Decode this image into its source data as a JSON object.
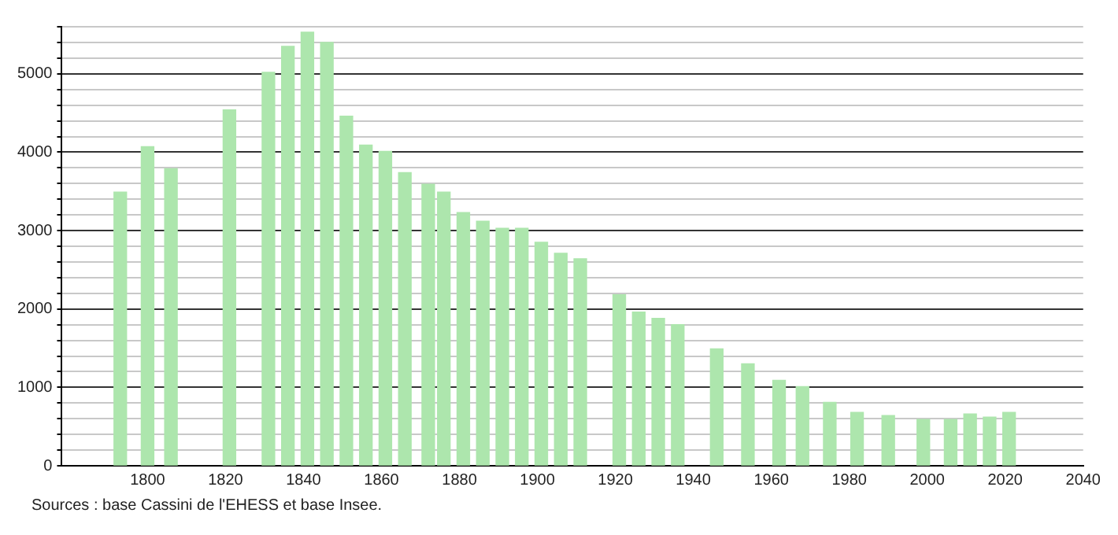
{
  "chart_data": {
    "type": "bar",
    "x": [
      1793,
      1800,
      1806,
      1821,
      1831,
      1836,
      1841,
      1846,
      1851,
      1856,
      1861,
      1866,
      1872,
      1876,
      1881,
      1886,
      1891,
      1896,
      1901,
      1906,
      1911,
      1921,
      1926,
      1931,
      1936,
      1946,
      1954,
      1962,
      1968,
      1975,
      1982,
      1990,
      1999,
      2006,
      2011,
      2016,
      2021
    ],
    "values": [
      3490,
      4070,
      3790,
      4540,
      5020,
      5350,
      5530,
      5400,
      4460,
      4090,
      4010,
      3740,
      3590,
      3490,
      3230,
      3120,
      3030,
      3030,
      2850,
      2710,
      2640,
      2180,
      1960,
      1880,
      1800,
      1490,
      1300,
      1090,
      1010,
      810,
      680,
      640,
      590,
      590,
      660,
      620,
      680
    ],
    "color": "#ade6ad",
    "xlim": [
      1778,
      2040
    ],
    "xticks": [
      1800,
      1820,
      1840,
      1860,
      1880,
      1900,
      1920,
      1940,
      1960,
      1980,
      2000,
      2020,
      2040
    ],
    "ylim": [
      0,
      5600
    ],
    "yticks": [
      0,
      {
        "value": 200,
        "label": null
      },
      {
        "value": 400,
        "label": null
      },
      {
        "value": 600,
        "label": null
      },
      {
        "value": 800,
        "label": null
      },
      1000,
      {
        "value": 1200,
        "label": null
      },
      {
        "value": 1400,
        "label": null
      },
      {
        "value": 1600,
        "label": null
      },
      {
        "value": 1800,
        "label": null
      },
      2000,
      {
        "value": 2200,
        "label": null
      },
      {
        "value": 2400,
        "label": null
      },
      {
        "value": 2600,
        "label": null
      },
      {
        "value": 2800,
        "label": null
      },
      3000,
      {
        "value": 3200,
        "label": null
      },
      {
        "value": 3400,
        "label": null
      },
      {
        "value": 3600,
        "label": null
      },
      {
        "value": 3800,
        "label": null
      },
      4000,
      {
        "value": 4200,
        "label": null
      },
      {
        "value": 4400,
        "label": null
      },
      {
        "value": 4600,
        "label": null
      },
      {
        "value": 4800,
        "label": null
      },
      5000,
      {
        "value": 5200,
        "label": null
      },
      {
        "value": 5400,
        "label": null
      },
      {
        "value": 5600,
        "label": null
      }
    ],
    "grid": "y",
    "legend": false,
    "annotations": [
      "Sources : base Cassini de l'EHESS et base Insee."
    ]
  }
}
